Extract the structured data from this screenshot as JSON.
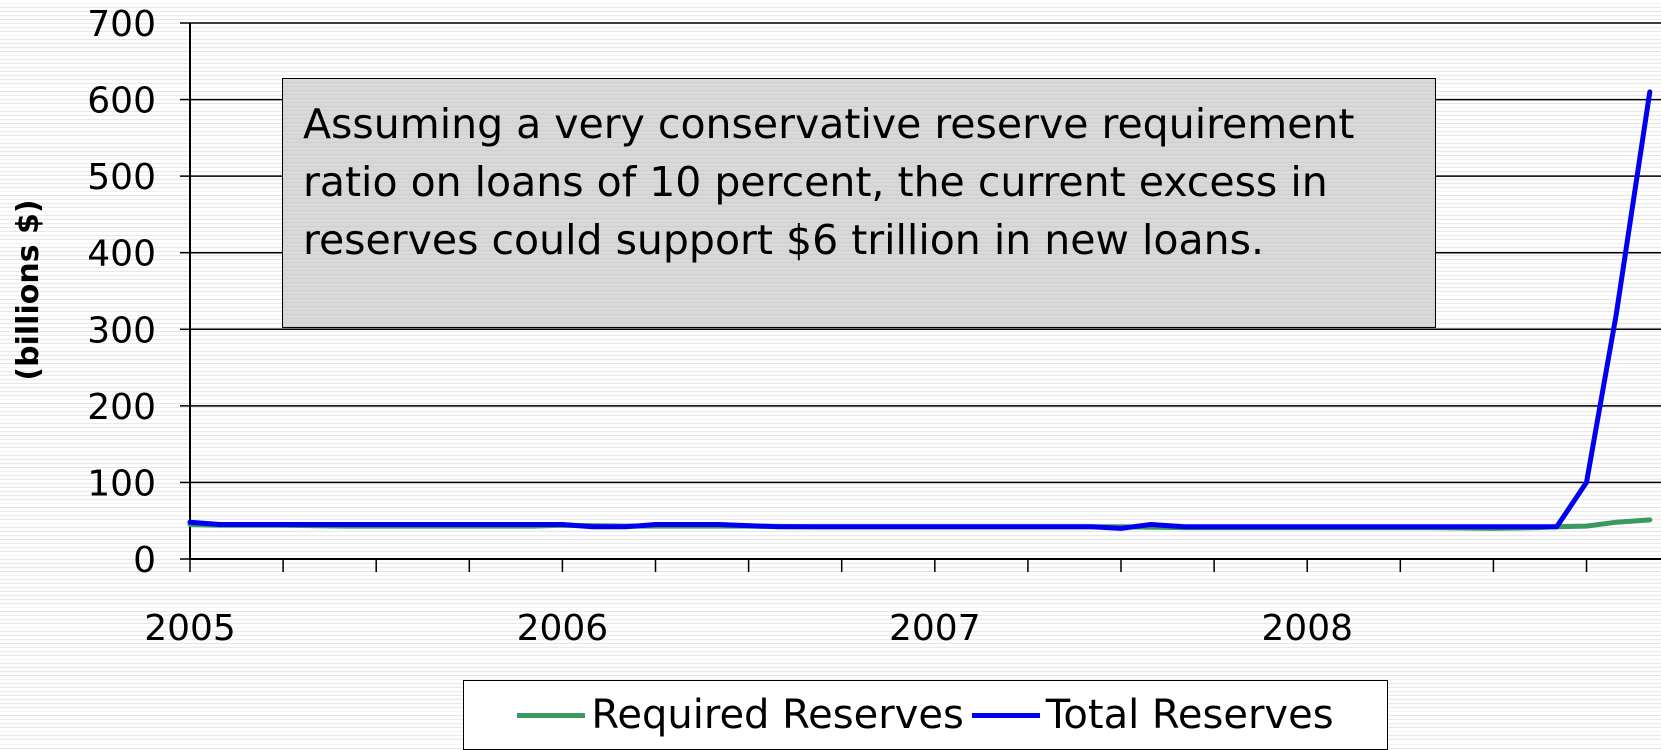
{
  "chart_data": {
    "type": "line",
    "title": "",
    "xlabel": "",
    "ylabel": "(billions $)",
    "ylim": [
      0,
      700
    ],
    "yticks": [
      0,
      100,
      200,
      300,
      400,
      500,
      600,
      700
    ],
    "xlim": [
      2005,
      2008.95
    ],
    "xtick_labels": [
      {
        "x": 2005,
        "label": "2005"
      },
      {
        "x": 2006,
        "label": "2006"
      },
      {
        "x": 2007,
        "label": "2007"
      },
      {
        "x": 2008,
        "label": "2008"
      }
    ],
    "minor_ticks_per_year": 4,
    "grid": true,
    "legend": "bottom",
    "annotation": "Assuming a very conservative reserve requirement ratio on loans of 10 percent, the current excess in reserves could support $6 trillion in new loans.",
    "series": [
      {
        "name": "Required Reserves",
        "color": "#3a9a60",
        "points": [
          [
            2005.0,
            45
          ],
          [
            2005.08,
            44
          ],
          [
            2005.25,
            44
          ],
          [
            2005.42,
            43
          ],
          [
            2005.58,
            43
          ],
          [
            2005.75,
            43
          ],
          [
            2005.92,
            43
          ],
          [
            2006.0,
            44
          ],
          [
            2006.17,
            43
          ],
          [
            2006.33,
            43
          ],
          [
            2006.5,
            43
          ],
          [
            2006.67,
            42
          ],
          [
            2006.83,
            42
          ],
          [
            2007.0,
            42
          ],
          [
            2007.17,
            42
          ],
          [
            2007.33,
            42
          ],
          [
            2007.5,
            42
          ],
          [
            2007.67,
            41
          ],
          [
            2007.83,
            41
          ],
          [
            2008.0,
            41
          ],
          [
            2008.17,
            41
          ],
          [
            2008.33,
            41
          ],
          [
            2008.5,
            40
          ],
          [
            2008.62,
            41
          ],
          [
            2008.67,
            42
          ],
          [
            2008.75,
            43
          ],
          [
            2008.83,
            48
          ],
          [
            2008.92,
            51
          ]
        ]
      },
      {
        "name": "Total Reserves",
        "color": "#0000ee",
        "points": [
          [
            2005.0,
            48
          ],
          [
            2005.08,
            45
          ],
          [
            2005.25,
            45
          ],
          [
            2005.42,
            45
          ],
          [
            2005.58,
            45
          ],
          [
            2005.75,
            45
          ],
          [
            2005.92,
            45
          ],
          [
            2006.0,
            45
          ],
          [
            2006.08,
            42
          ],
          [
            2006.17,
            42
          ],
          [
            2006.25,
            45
          ],
          [
            2006.42,
            45
          ],
          [
            2006.58,
            42
          ],
          [
            2006.75,
            42
          ],
          [
            2006.92,
            42
          ],
          [
            2007.08,
            42
          ],
          [
            2007.25,
            42
          ],
          [
            2007.42,
            42
          ],
          [
            2007.5,
            40
          ],
          [
            2007.58,
            45
          ],
          [
            2007.67,
            42
          ],
          [
            2007.83,
            42
          ],
          [
            2008.0,
            42
          ],
          [
            2008.17,
            42
          ],
          [
            2008.33,
            42
          ],
          [
            2008.5,
            42
          ],
          [
            2008.58,
            42
          ],
          [
            2008.67,
            42
          ],
          [
            2008.75,
            100
          ],
          [
            2008.83,
            320
          ],
          [
            2008.92,
            610
          ]
        ]
      }
    ]
  }
}
